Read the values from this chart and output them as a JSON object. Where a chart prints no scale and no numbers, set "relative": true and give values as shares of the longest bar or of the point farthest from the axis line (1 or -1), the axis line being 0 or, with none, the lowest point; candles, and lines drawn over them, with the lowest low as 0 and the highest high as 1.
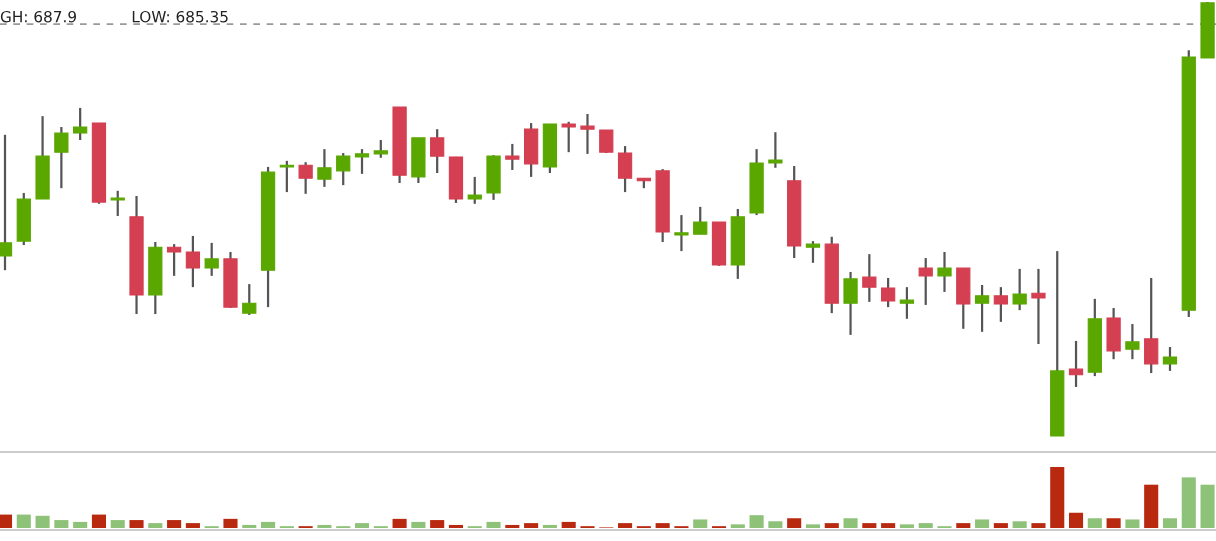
{
  "chart_data": [
    {
      "type": "candlestick",
      "relative": true,
      "annotations": [
        "GH: 687.9",
        "LOW: 685.35"
      ],
      "ref_lines": [
        {
          "axis": "y",
          "value": 0.949,
          "color": "#999999",
          "line_style": "dashed"
        }
      ],
      "categories": [
        null,
        null,
        null,
        null,
        null,
        null,
        null,
        null,
        null,
        null,
        null,
        null,
        null,
        null,
        null,
        null,
        null,
        null,
        null,
        null,
        null,
        null,
        null,
        null,
        null,
        null,
        null,
        null,
        null,
        null,
        null,
        null,
        null,
        null,
        null,
        null,
        null,
        null,
        null,
        null,
        null,
        null,
        null,
        null,
        null,
        null,
        null,
        null,
        null,
        null,
        null,
        null,
        null,
        null,
        null,
        null,
        null,
        null,
        null,
        null,
        null,
        null,
        null,
        null,
        null
      ],
      "ohlc": [
        [
          0.415,
          0.694,
          0.382,
          0.445
        ],
        [
          0.449,
          0.56,
          0.44,
          0.546
        ],
        [
          0.546,
          0.737,
          0.546,
          0.645
        ],
        [
          0.654,
          0.712,
          0.571,
          0.698
        ],
        [
          0.698,
          0.756,
          0.682,
          0.712
        ],
        [
          0.721,
          0.721,
          0.535,
          0.539
        ],
        [
          0.544,
          0.565,
          0.507,
          0.548
        ],
        [
          0.505,
          0.553,
          0.281,
          0.325
        ],
        [
          0.325,
          0.447,
          0.281,
          0.435
        ],
        [
          0.435,
          0.442,
          0.369,
          0.424
        ],
        [
          0.424,
          0.461,
          0.343,
          0.387
        ],
        [
          0.387,
          0.445,
          0.369,
          0.408
        ],
        [
          0.408,
          0.424,
          0.295,
          0.297
        ],
        [
          0.283,
          0.35,
          0.279,
          0.306
        ],
        [
          0.382,
          0.62,
          0.297,
          0.608
        ],
        [
          0.62,
          0.634,
          0.562,
          0.624
        ],
        [
          0.624,
          0.631,
          0.558,
          0.594
        ],
        [
          0.592,
          0.661,
          0.574,
          0.618
        ],
        [
          0.611,
          0.652,
          0.578,
          0.645
        ],
        [
          0.643,
          0.661,
          0.604,
          0.65
        ],
        [
          0.65,
          0.682,
          0.641,
          0.657
        ],
        [
          0.758,
          0.758,
          0.583,
          0.601
        ],
        [
          0.597,
          0.687,
          0.583,
          0.687
        ],
        [
          0.687,
          0.707,
          0.606,
          0.645
        ],
        [
          0.643,
          0.643,
          0.537,
          0.546
        ],
        [
          0.546,
          0.597,
          0.535,
          0.555
        ],
        [
          0.56,
          0.647,
          0.544,
          0.645
        ],
        [
          0.645,
          0.673,
          0.613,
          0.638
        ],
        [
          0.707,
          0.721,
          0.597,
          0.627
        ],
        [
          0.62,
          0.719,
          0.606,
          0.719
        ],
        [
          0.719,
          0.724,
          0.654,
          0.712
        ],
        [
          0.714,
          0.742,
          0.65,
          0.707
        ],
        [
          0.705,
          0.705,
          0.652,
          0.654
        ],
        [
          0.652,
          0.668,
          0.562,
          0.594
        ],
        [
          0.594,
          0.594,
          0.571,
          0.588
        ],
        [
          0.611,
          0.615,
          0.447,
          0.47
        ],
        [
          0.463,
          0.509,
          0.426,
          0.468
        ],
        [
          0.465,
          0.528,
          0.465,
          0.493
        ],
        [
          0.493,
          0.493,
          0.392,
          0.394
        ],
        [
          0.394,
          0.523,
          0.362,
          0.505
        ],
        [
          0.514,
          0.661,
          0.509,
          0.629
        ],
        [
          0.629,
          0.7,
          0.618,
          0.636
        ],
        [
          0.588,
          0.622,
          0.41,
          0.438
        ],
        [
          0.435,
          0.449,
          0.399,
          0.442
        ],
        [
          0.442,
          0.459,
          0.283,
          0.306
        ],
        [
          0.306,
          0.378,
          0.233,
          0.362
        ],
        [
          0.366,
          0.419,
          0.309,
          0.343
        ],
        [
          0.341,
          0.364,
          0.297,
          0.311
        ],
        [
          0.306,
          0.343,
          0.27,
          0.313
        ],
        [
          0.387,
          0.41,
          0.302,
          0.369
        ],
        [
          0.369,
          0.424,
          0.332,
          0.387
        ],
        [
          0.387,
          0.387,
          0.247,
          0.304
        ],
        [
          0.306,
          0.348,
          0.24,
          0.323
        ],
        [
          0.323,
          0.343,
          0.263,
          0.304
        ],
        [
          0.304,
          0.385,
          0.29,
          0.327
        ],
        [
          0.329,
          0.385,
          0.212,
          0.318
        ],
        [
          0.0,
          0.426,
          0.0,
          0.15
        ],
        [
          0.154,
          0.219,
          0.113,
          0.141
        ],
        [
          0.147,
          0.316,
          0.138,
          0.27
        ],
        [
          0.272,
          0.295,
          0.177,
          0.196
        ],
        [
          0.2,
          0.258,
          0.177,
          0.217
        ],
        [
          0.224,
          0.364,
          0.145,
          0.166
        ],
        [
          0.166,
          0.205,
          0.15,
          0.182
        ],
        [
          0.29,
          0.889,
          0.274,
          0.873
        ],
        [
          0.871,
          1.0,
          0.871,
          0.998
        ]
      ],
      "colors": [
        "#5aa700",
        "#5aa700",
        "#5aa700",
        "#5aa700",
        "#5aa700",
        "#d43f51",
        "#5aa700",
        "#d43f51",
        "#5aa700",
        "#d43f51",
        "#d43f51",
        "#5aa700",
        "#d43f51",
        "#5aa700",
        "#5aa700",
        "#5aa700",
        "#d43f51",
        "#5aa700",
        "#5aa700",
        "#5aa700",
        "#5aa700",
        "#d43f51",
        "#5aa700",
        "#d43f51",
        "#d43f51",
        "#5aa700",
        "#5aa700",
        "#d43f51",
        "#d43f51",
        "#5aa700",
        "#d43f51",
        "#d43f51",
        "#d43f51",
        "#d43f51",
        "#d43f51",
        "#d43f51",
        "#5aa700",
        "#5aa700",
        "#d43f51",
        "#5aa700",
        "#5aa700",
        "#5aa700",
        "#d43f51",
        "#5aa700",
        "#d43f51",
        "#5aa700",
        "#d43f51",
        "#d43f51",
        "#5aa700",
        "#d43f51",
        "#5aa700",
        "#d43f51",
        "#5aa700",
        "#d43f51",
        "#5aa700",
        "#d43f51",
        "#5aa700",
        "#d43f51",
        "#5aa700",
        "#d43f51",
        "#5aa700",
        "#d43f51",
        "#5aa700",
        "#5aa700",
        "#5aa700"
      ]
    },
    {
      "type": "bar",
      "relative": true,
      "categories": [
        null,
        null,
        null,
        null,
        null,
        null,
        null,
        null,
        null,
        null,
        null,
        null,
        null,
        null,
        null,
        null,
        null,
        null,
        null,
        null,
        null,
        null,
        null,
        null,
        null,
        null,
        null,
        null,
        null,
        null,
        null,
        null,
        null,
        null,
        null,
        null,
        null,
        null,
        null,
        null,
        null,
        null,
        null,
        null,
        null,
        null,
        null,
        null,
        null,
        null,
        null,
        null,
        null,
        null,
        null,
        null,
        null,
        null,
        null,
        null,
        null,
        null,
        null,
        null,
        null
      ],
      "values": [
        0.22,
        0.22,
        0.2,
        0.13,
        0.1,
        0.22,
        0.13,
        0.13,
        0.08,
        0.13,
        0.08,
        0.03,
        0.15,
        0.05,
        0.1,
        0.03,
        0.03,
        0.05,
        0.03,
        0.08,
        0.03,
        0.15,
        0.1,
        0.13,
        0.05,
        0.03,
        0.1,
        0.05,
        0.08,
        0.05,
        0.1,
        0.03,
        0.01,
        0.08,
        0.03,
        0.08,
        0.03,
        0.14,
        0.03,
        0.06,
        0.21,
        0.11,
        0.16,
        0.06,
        0.08,
        0.16,
        0.08,
        0.08,
        0.06,
        0.08,
        0.03,
        0.08,
        0.14,
        0.08,
        0.11,
        0.08,
        1,
        0.25,
        0.16,
        0.16,
        0.14,
        0.71,
        0.16,
        0.83,
        0.71
      ],
      "colors": [
        "#b8290f",
        "#8fc279",
        "#8fc279",
        "#8fc279",
        "#8fc279",
        "#b8290f",
        "#8fc279",
        "#b8290f",
        "#8fc279",
        "#b8290f",
        "#b8290f",
        "#8fc279",
        "#b8290f",
        "#8fc279",
        "#8fc279",
        "#8fc279",
        "#b8290f",
        "#8fc279",
        "#8fc279",
        "#8fc279",
        "#8fc279",
        "#b8290f",
        "#8fc279",
        "#b8290f",
        "#b8290f",
        "#8fc279",
        "#8fc279",
        "#b8290f",
        "#b8290f",
        "#8fc279",
        "#b8290f",
        "#b8290f",
        "#b8290f",
        "#b8290f",
        "#b8290f",
        "#b8290f",
        "#b8290f",
        "#8fc279",
        "#b8290f",
        "#8fc279",
        "#8fc279",
        "#8fc279",
        "#b8290f",
        "#8fc279",
        "#b8290f",
        "#8fc279",
        "#b8290f",
        "#b8290f",
        "#8fc279",
        "#8fc279",
        "#8fc279",
        "#b8290f",
        "#8fc279",
        "#b8290f",
        "#8fc279",
        "#b8290f",
        "#b8290f",
        "#b8290f",
        "#8fc279",
        "#b8290f",
        "#8fc279",
        "#b8290f",
        "#8fc279",
        "#8fc279",
        "#8fc279"
      ]
    }
  ]
}
